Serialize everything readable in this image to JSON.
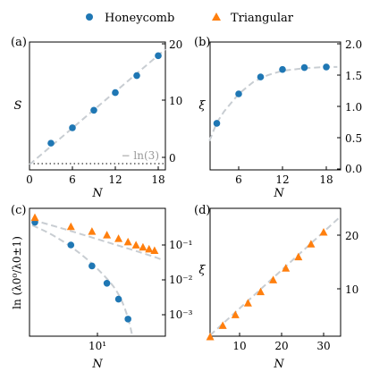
{
  "legend": [
    {
      "name": "Honeycomb",
      "color": "#1f77b4",
      "marker": "circle"
    },
    {
      "name": "Triangular",
      "color": "#ff7f0e",
      "marker": "triangle"
    }
  ],
  "chart_data": [
    {
      "panel": "(a)",
      "type": "scatter",
      "xlabel": "N",
      "ylabel": "S",
      "xlim": [
        0,
        19
      ],
      "ylim": [
        -0.5,
        20
      ],
      "xticks": [
        0,
        6,
        12,
        18
      ],
      "yticks_right": [
        0,
        10,
        20
      ],
      "annotation": "− ln(3)",
      "reference_line_y": -0.69,
      "series": [
        {
          "name": "Honeycomb",
          "x": [
            3,
            6,
            9,
            12,
            15,
            18
          ],
          "y": [
            2.5,
            5.2,
            8.3,
            11.4,
            14.4,
            17.9
          ]
        }
      ],
      "fit": {
        "x": [
          0,
          19
        ],
        "y": [
          -0.6,
          19.0
        ]
      }
    },
    {
      "panel": "(b)",
      "type": "scatter",
      "xlabel": "N",
      "ylabel": "ξ",
      "xlim": [
        1.5,
        19.5
      ],
      "ylim": [
        0,
        2
      ],
      "xticks": [
        6,
        12,
        18
      ],
      "yticks_right": [
        0.0,
        0.5,
        1.0,
        1.5,
        2.0
      ],
      "series": [
        {
          "name": "Honeycomb",
          "x": [
            3,
            6,
            9,
            12,
            15,
            18
          ],
          "y": [
            0.73,
            1.2,
            1.47,
            1.59,
            1.62,
            1.63
          ]
        }
      ],
      "fit": {
        "x": [
          2,
          3,
          4,
          6,
          8,
          10,
          12,
          15,
          18,
          19.5
        ],
        "y": [
          0.45,
          0.74,
          0.92,
          1.2,
          1.39,
          1.5,
          1.57,
          1.61,
          1.63,
          1.63
        ]
      }
    },
    {
      "panel": "(c)",
      "type": "scatter",
      "xlabel": "N",
      "ylabel": "ln (λ0⁰/λ0±1)",
      "x_scale": "log",
      "y_scale": "log",
      "xticks": [
        10
      ],
      "x_tick_labels": [
        "10¹"
      ],
      "yticks_right": [
        0.001,
        0.01,
        0.1
      ],
      "y_tick_labels": [
        "10⁻³",
        "10⁻²",
        "10⁻¹"
      ],
      "series": [
        {
          "name": "Honeycomb",
          "x": [
            3,
            6,
            9,
            12,
            15,
            18
          ],
          "y": [
            0.45,
            0.1,
            0.025,
            0.008,
            0.0028,
            0.00075
          ]
        },
        {
          "name": "Triangular",
          "x": [
            3,
            6,
            9,
            12,
            15,
            18,
            21,
            24,
            27,
            30
          ],
          "y": [
            0.6,
            0.33,
            0.24,
            0.19,
            0.15,
            0.12,
            0.098,
            0.085,
            0.075,
            0.068
          ]
        }
      ]
    },
    {
      "panel": "(d)",
      "type": "scatter",
      "xlabel": "N",
      "ylabel": "ξ",
      "xlim": [
        2,
        33
      ],
      "ylim": [
        0,
        25
      ],
      "xticks": [
        10,
        20,
        30
      ],
      "yticks_right": [
        10,
        20
      ],
      "series": [
        {
          "name": "Triangular",
          "x": [
            3,
            6,
            9,
            12,
            15,
            18,
            21,
            24,
            27,
            30
          ],
          "y": [
            1.0,
            3.1,
            5.1,
            7.3,
            9.4,
            11.6,
            13.8,
            15.9,
            18.3,
            20.5
          ]
        }
      ],
      "fit": {
        "x": [
          2,
          33
        ],
        "y": [
          0.2,
          22.7
        ]
      }
    }
  ],
  "tick_labels": {
    "a_x": [
      "0",
      "6",
      "12",
      "18"
    ],
    "a_y": [
      "0",
      "10",
      "20"
    ],
    "b_x": [
      "6",
      "12",
      "18"
    ],
    "b_y": [
      "0.0",
      "0.5",
      "1.0",
      "1.5",
      "2.0"
    ],
    "c_x": [
      "10¹"
    ],
    "c_y": [
      "10⁻³",
      "10⁻²",
      "10⁻¹"
    ],
    "d_x": [
      "10",
      "20",
      "30"
    ],
    "d_y": [
      "10",
      "20"
    ]
  }
}
